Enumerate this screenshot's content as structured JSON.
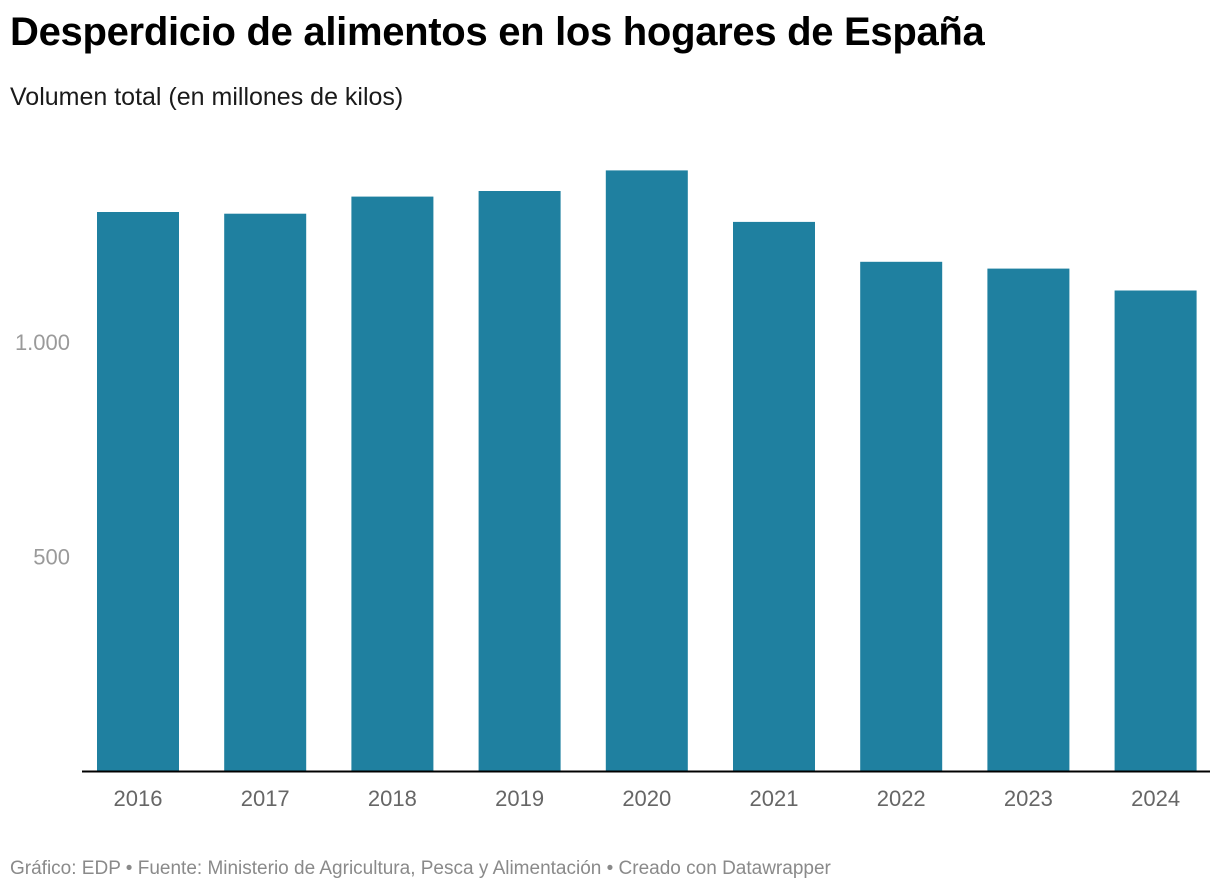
{
  "header": {
    "title": "Desperdicio de alimentos en los hogares de España",
    "subtitle": "Volumen total (en millones de kilos)"
  },
  "footer": {
    "text": "Gráfico: EDP • Fuente: Ministerio de Agricultura, Pesca y Alimentación • Creado con Datawrapper"
  },
  "colors": {
    "bar": "#1f80a0",
    "axis": "#000000",
    "tick_label": "#9a9a9a",
    "category_label": "#666666"
  },
  "chart_data": {
    "type": "bar",
    "title": "Desperdicio de alimentos en los hogares de España",
    "subtitle": "Volumen total (en millones de kilos)",
    "xlabel": "",
    "ylabel": "",
    "categories": [
      "2016",
      "2017",
      "2018",
      "2019",
      "2020",
      "2021",
      "2022",
      "2023",
      "2024"
    ],
    "values": [
      1303,
      1299,
      1339,
      1352,
      1400,
      1280,
      1187,
      1171,
      1120
    ],
    "ylim": [
      0,
      1500
    ],
    "yticks": [
      {
        "value": 500,
        "label": "500"
      },
      {
        "value": 1000,
        "label": "1.000"
      }
    ],
    "grid": false
  }
}
